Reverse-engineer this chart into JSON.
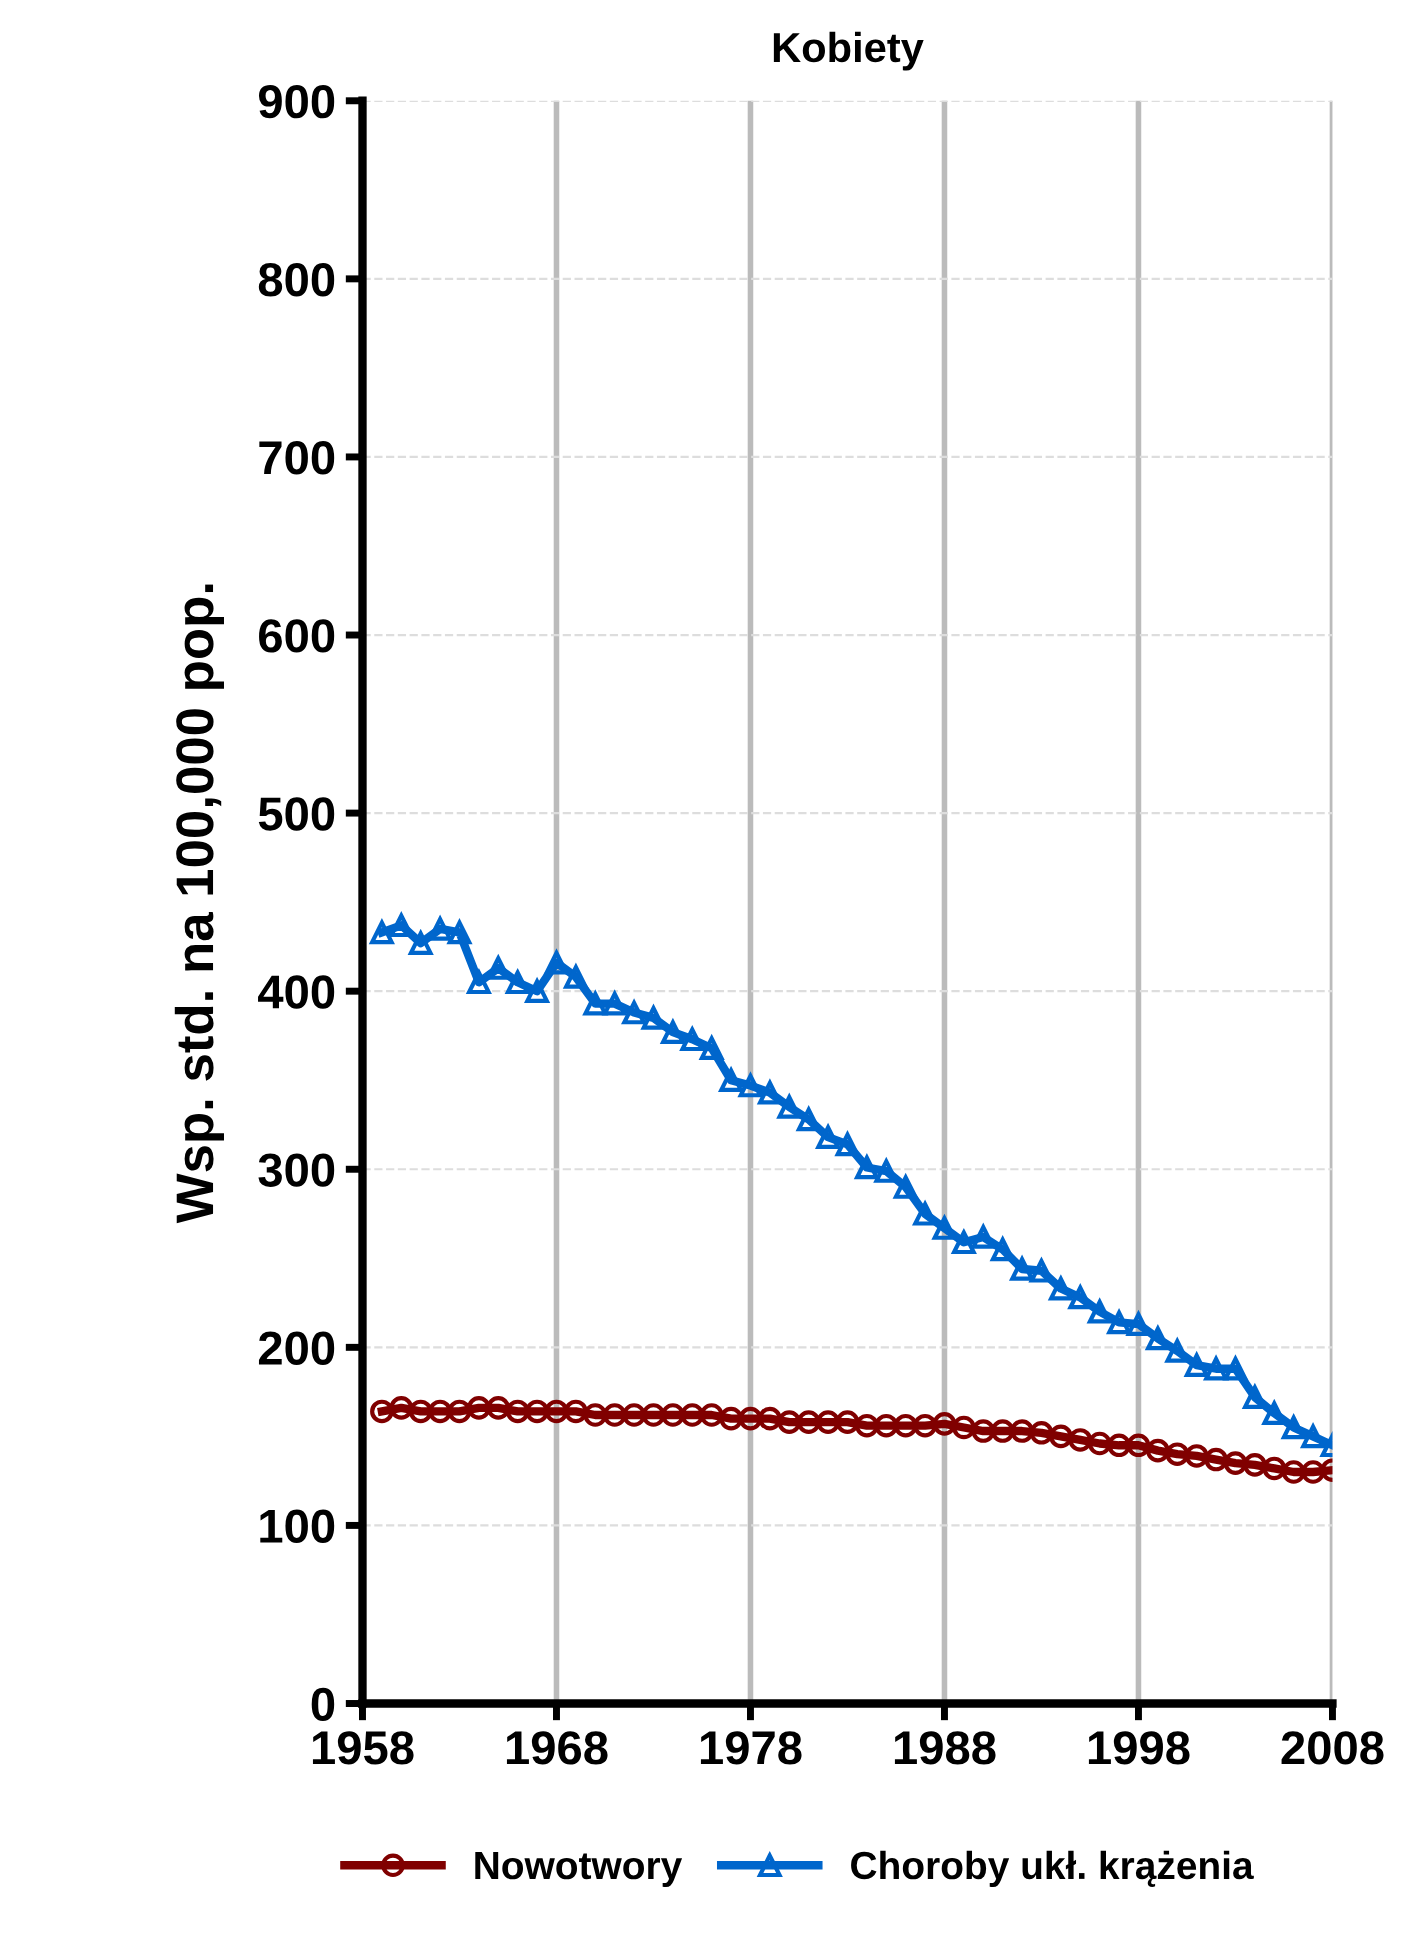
{
  "chart_data": {
    "type": "line",
    "title": "Kobiety",
    "ylabel": "Wsp. std. na 100,000 pop.",
    "x": [
      1959,
      1960,
      1961,
      1962,
      1963,
      1964,
      1965,
      1966,
      1967,
      1968,
      1969,
      1970,
      1971,
      1972,
      1973,
      1974,
      1975,
      1976,
      1977,
      1978,
      1979,
      1980,
      1981,
      1982,
      1983,
      1984,
      1985,
      1986,
      1987,
      1988,
      1989,
      1990,
      1991,
      1992,
      1993,
      1994,
      1995,
      1996,
      1997,
      1998,
      1999,
      2000,
      2001,
      2002,
      2003,
      2004,
      2005,
      2006,
      2007,
      2008
    ],
    "series": [
      {
        "name": "Nowotwory",
        "color": "#800000",
        "marker": "circle",
        "values": [
          164,
          166,
          164,
          164,
          164,
          166,
          166,
          164,
          164,
          164,
          164,
          162,
          162,
          162,
          162,
          162,
          162,
          162,
          160,
          160,
          160,
          158,
          158,
          158,
          158,
          156,
          156,
          156,
          156,
          157,
          155,
          153,
          153,
          153,
          152,
          150,
          148,
          146,
          145,
          145,
          142,
          140,
          139,
          137,
          135,
          134,
          132,
          130,
          130,
          131
        ]
      },
      {
        "name": "Choroby ukł. krążenia",
        "color": "#0066cc",
        "marker": "triangle",
        "values": [
          433,
          437,
          427,
          435,
          433,
          405,
          413,
          405,
          400,
          416,
          408,
          393,
          393,
          388,
          385,
          377,
          373,
          368,
          350,
          347,
          343,
          335,
          328,
          318,
          314,
          301,
          299,
          290,
          275,
          267,
          259,
          262,
          255,
          244,
          243,
          233,
          228,
          220,
          214,
          213,
          205,
          198,
          190,
          188,
          188,
          172,
          163,
          155,
          150,
          145
        ]
      }
    ],
    "xlim": [
      1958,
      2008
    ],
    "xticks": [
      1958,
      1968,
      1978,
      1988,
      1998,
      2008
    ],
    "ylim": [
      0,
      900
    ],
    "yticks": [
      0,
      100,
      200,
      300,
      400,
      500,
      600,
      700,
      800,
      900
    ],
    "grid": true,
    "legend": "bottom",
    "line_style": "solid"
  }
}
